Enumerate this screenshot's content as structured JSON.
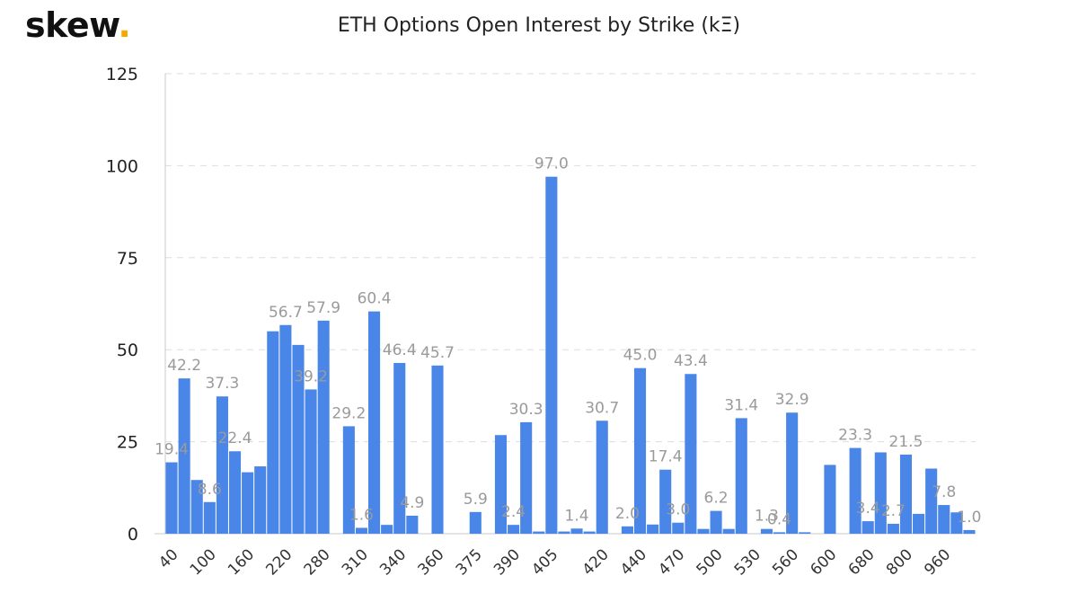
{
  "brand": {
    "name": "skew",
    "dot": "."
  },
  "chart_data": {
    "type": "bar",
    "title": "ETH Options Open Interest by Strike (kΞ)",
    "xlabel": "",
    "ylabel": "",
    "ylim": [
      0,
      125
    ],
    "yticks": [
      0,
      25,
      50,
      75,
      100,
      125
    ],
    "grid": true,
    "legend": "none",
    "bar_color": "#4a86e8",
    "grid_color": "#dddddd",
    "label_color": "#9a9a9a",
    "x_tick_labels": [
      "40",
      "100",
      "160",
      "220",
      "280",
      "310",
      "340",
      "360",
      "375",
      "390",
      "405",
      "420",
      "440",
      "470",
      "500",
      "530",
      "560",
      "600",
      "680",
      "800",
      "960"
    ],
    "values": [
      19.4,
      42.2,
      14.6,
      8.6,
      37.3,
      22.4,
      16.7,
      18.3,
      55.0,
      56.7,
      51.3,
      39.2,
      57.9,
      0,
      29.2,
      1.6,
      60.4,
      2.4,
      46.4,
      4.9,
      0,
      45.7,
      0,
      0,
      5.9,
      0,
      26.8,
      2.4,
      30.3,
      0.6,
      97.0,
      0.6,
      1.4,
      0.6,
      30.7,
      0,
      2.0,
      45.0,
      2.5,
      17.4,
      3.0,
      43.4,
      1.3,
      6.2,
      1.3,
      31.4,
      0,
      1.3,
      0.4,
      32.9,
      0.4,
      0,
      18.7,
      0,
      23.3,
      3.4,
      22.1,
      2.7,
      21.5,
      5.4,
      17.7,
      7.8,
      5.8,
      1.0
    ],
    "data_labels": [
      {
        "index": 0,
        "text": "19.4"
      },
      {
        "index": 1,
        "text": "42.2"
      },
      {
        "index": 3,
        "text": "8.6"
      },
      {
        "index": 4,
        "text": "37.3"
      },
      {
        "index": 5,
        "text": "22.4"
      },
      {
        "index": 9,
        "text": "56.7"
      },
      {
        "index": 11,
        "text": "39.2"
      },
      {
        "index": 12,
        "text": "57.9"
      },
      {
        "index": 14,
        "text": "29.2"
      },
      {
        "index": 15,
        "text": "1.6"
      },
      {
        "index": 16,
        "text": "60.4"
      },
      {
        "index": 18,
        "text": "46.4"
      },
      {
        "index": 19,
        "text": "4.9"
      },
      {
        "index": 21,
        "text": "45.7"
      },
      {
        "index": 24,
        "text": "5.9"
      },
      {
        "index": 27,
        "text": "2.4"
      },
      {
        "index": 28,
        "text": "30.3"
      },
      {
        "index": 30,
        "text": "97.0"
      },
      {
        "index": 32,
        "text": "1.4"
      },
      {
        "index": 34,
        "text": "30.7"
      },
      {
        "index": 36,
        "text": "2.0"
      },
      {
        "index": 37,
        "text": "45.0"
      },
      {
        "index": 39,
        "text": "17.4"
      },
      {
        "index": 40,
        "text": "3.0"
      },
      {
        "index": 41,
        "text": "43.4"
      },
      {
        "index": 43,
        "text": "6.2"
      },
      {
        "index": 45,
        "text": "31.4"
      },
      {
        "index": 47,
        "text": "1.3"
      },
      {
        "index": 48,
        "text": "0.4"
      },
      {
        "index": 49,
        "text": "32.9"
      },
      {
        "index": 54,
        "text": "23.3"
      },
      {
        "index": 55,
        "text": "3.4"
      },
      {
        "index": 57,
        "text": "2.7"
      },
      {
        "index": 58,
        "text": "21.5"
      },
      {
        "index": 61,
        "text": "7.8"
      },
      {
        "index": 63,
        "text": "1.0"
      }
    ]
  }
}
